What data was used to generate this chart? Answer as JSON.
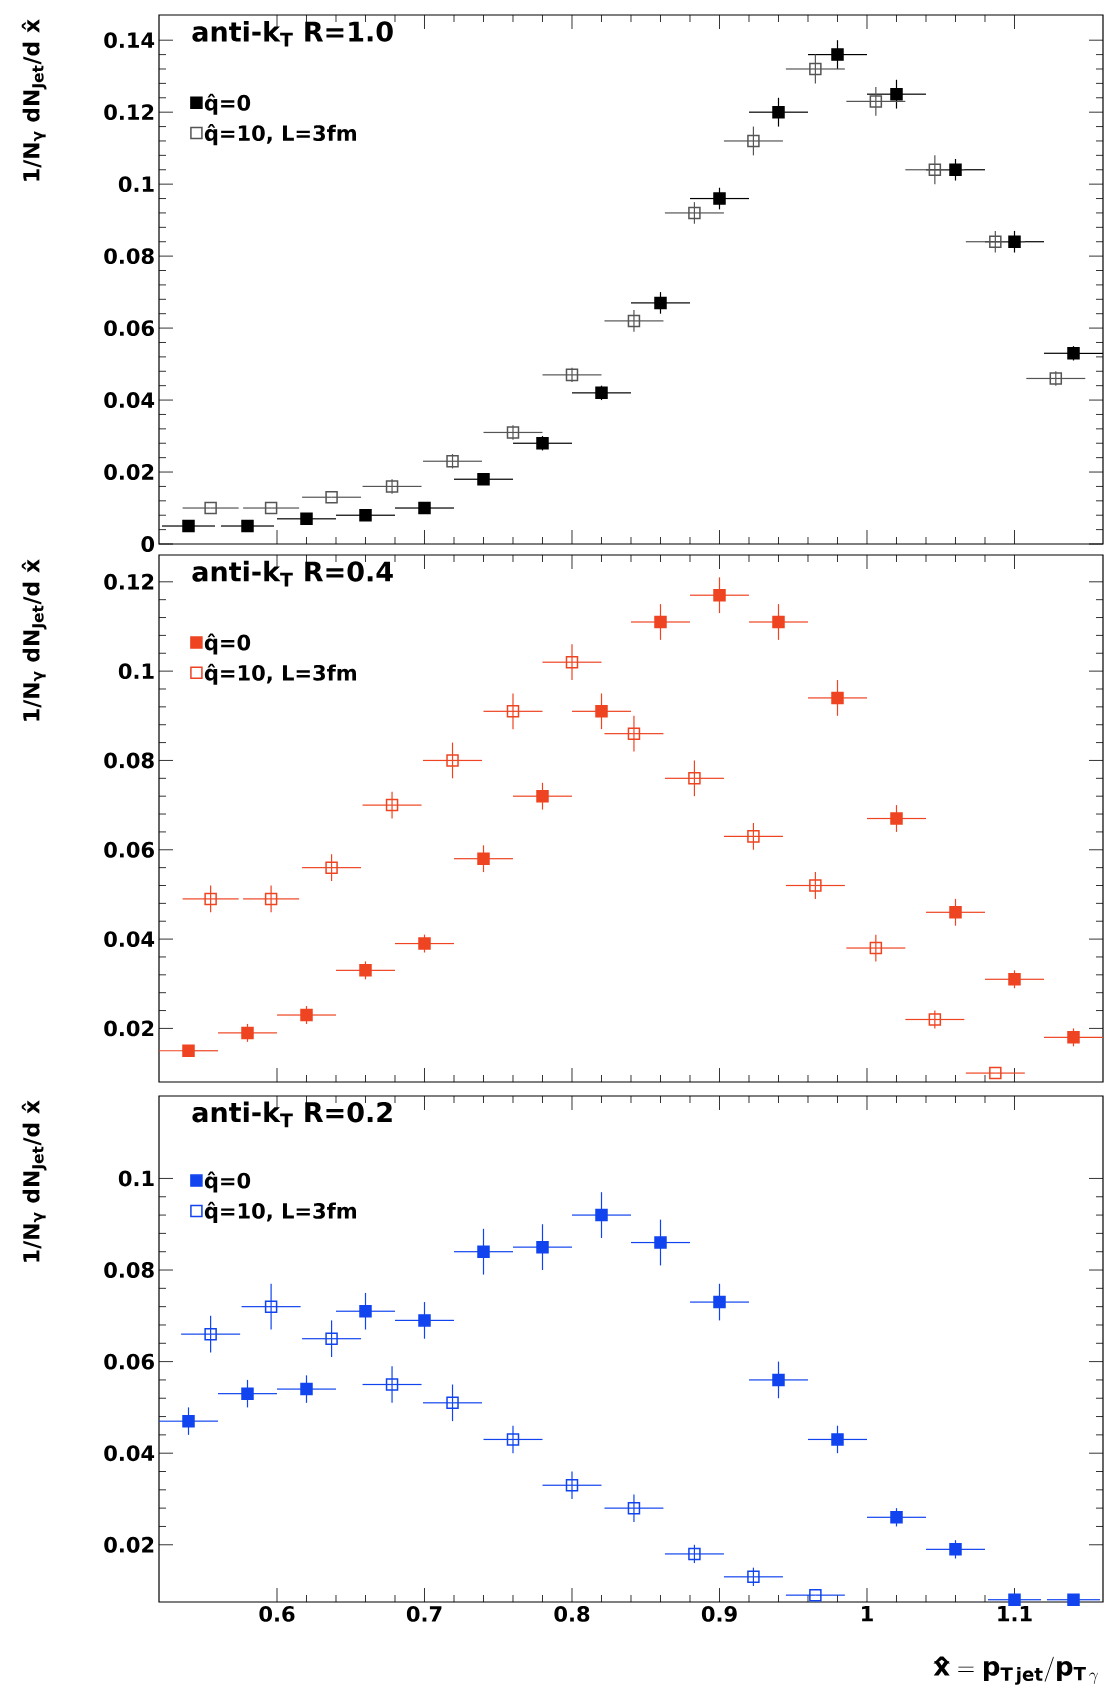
{
  "chart_data": [
    {
      "type": "scatter",
      "title": "anti-k$_{T}$ R=1.0",
      "ylabel": "1/N$_{γ}$ dN$_{Jet}$/d x̂",
      "xlim": [
        0.52,
        1.16
      ],
      "xticks": [
        0.6,
        0.7,
        0.8,
        0.9,
        1,
        1.1
      ],
      "ylim": [
        0,
        0.147
      ],
      "yticks": [
        0,
        0.02,
        0.04,
        0.06,
        0.08,
        0.1,
        0.12,
        0.14
      ],
      "tick_labels": "y",
      "legend": "top left",
      "marker": "square",
      "series": [
        {
          "name": "q̂=0",
          "color": "#000000",
          "x": [
            0.54,
            0.58,
            0.62,
            0.66,
            0.7,
            0.74,
            0.78,
            0.82,
            0.86,
            0.9,
            0.94,
            0.98,
            1.02,
            1.06,
            1.1,
            1.14
          ],
          "values": [
            0.005,
            0.005,
            0.007,
            0.008,
            0.01,
            0.018,
            0.028,
            0.042,
            0.067,
            0.096,
            0.12,
            0.136,
            0.125,
            0.104,
            0.084,
            0.053
          ],
          "errors": [
            null,
            null,
            null,
            null,
            null,
            null,
            0.002,
            0.002,
            0.003,
            0.003,
            0.004,
            0.004,
            0.004,
            0.003,
            0.003,
            0.002
          ],
          "xerrors": [
            0.018,
            0.018,
            0.02,
            0.02,
            0.02,
            0.02,
            0.02,
            0.02,
            0.02,
            0.02,
            0.02,
            0.02,
            0.02,
            0.02,
            0.02,
            0.02
          ]
        },
        {
          "name": "q̂=10, L=3fm",
          "color": "#555555",
          "x": [
            0.555,
            0.596,
            0.637,
            0.678,
            0.719,
            0.76,
            0.8,
            0.842,
            0.883,
            0.923,
            0.965,
            1.006,
            1.046,
            1.087,
            1.128
          ],
          "values": [
            0.01,
            0.01,
            0.013,
            0.016,
            0.023,
            0.031,
            0.047,
            0.062,
            0.092,
            0.112,
            0.132,
            0.123,
            0.104,
            0.084,
            0.046
          ],
          "errors": [
            null,
            null,
            null,
            0.002,
            0.002,
            0.002,
            0.002,
            0.003,
            0.003,
            0.004,
            0.004,
            0.004,
            0.004,
            0.003,
            0.002
          ],
          "xerrors": [
            0.019,
            0.019,
            0.02,
            0.02,
            0.02,
            0.02,
            0.02,
            0.02,
            0.02,
            0.02,
            0.02,
            0.02,
            0.02,
            0.02,
            0.02
          ]
        }
      ]
    },
    {
      "type": "scatter",
      "title": "anti-k$_{T}$ R=0.4",
      "ylabel": "1/N$_{γ}$ dN$_{Jet}$/d x̂",
      "xlim": [
        0.52,
        1.16
      ],
      "xticks": [
        0.6,
        0.7,
        0.8,
        0.9,
        1,
        1.1
      ],
      "ylim": [
        0.008,
        0.126
      ],
      "yticks": [
        0.02,
        0.04,
        0.06,
        0.08,
        0.1,
        0.12
      ],
      "tick_labels": "y",
      "legend": "top left",
      "marker": "square",
      "series": [
        {
          "name": "q̂=0",
          "color": "#ee4422",
          "x": [
            0.54,
            0.58,
            0.62,
            0.66,
            0.7,
            0.74,
            0.78,
            0.82,
            0.86,
            0.9,
            0.94,
            0.98,
            1.02,
            1.06,
            1.1,
            1.14
          ],
          "values": [
            0.015,
            0.019,
            0.023,
            0.033,
            0.039,
            0.058,
            0.072,
            0.091,
            0.111,
            0.117,
            0.111,
            0.094,
            0.067,
            0.046,
            0.031,
            0.018
          ],
          "errors": [
            null,
            0.002,
            0.002,
            0.002,
            0.002,
            0.003,
            0.003,
            0.004,
            0.004,
            0.004,
            0.004,
            0.004,
            0.003,
            0.003,
            0.002,
            0.002
          ],
          "xerrors": [
            0.02,
            0.02,
            0.02,
            0.02,
            0.02,
            0.02,
            0.02,
            0.02,
            0.02,
            0.02,
            0.02,
            0.02,
            0.02,
            0.02,
            0.02,
            0.02
          ]
        },
        {
          "name": "q̂=10, L=3fm",
          "color": "#ee4422",
          "x": [
            0.555,
            0.596,
            0.637,
            0.678,
            0.719,
            0.76,
            0.8,
            0.842,
            0.883,
            0.923,
            0.965,
            1.006,
            1.046,
            1.087
          ],
          "values": [
            0.049,
            0.049,
            0.056,
            0.07,
            0.08,
            0.091,
            0.102,
            0.086,
            0.076,
            0.063,
            0.052,
            0.038,
            0.022,
            0.01
          ],
          "errors": [
            0.003,
            0.003,
            0.003,
            0.003,
            0.004,
            0.004,
            0.004,
            0.004,
            0.004,
            0.003,
            0.003,
            0.003,
            0.002,
            null
          ],
          "xerrors": [
            0.019,
            0.019,
            0.02,
            0.02,
            0.02,
            0.02,
            0.02,
            0.02,
            0.02,
            0.02,
            0.02,
            0.02,
            0.02,
            0.02
          ]
        }
      ]
    },
    {
      "type": "scatter",
      "title": "anti-k$_{T}$ R=0.2",
      "ylabel": "1/N$_{γ}$ dN$_{Jet}$/d x̂",
      "xlabel": "\\mathbf{\\hat{x} = p_{T\\,jet}/p_{T\\,\\gamma}}",
      "xlim": [
        0.52,
        1.16
      ],
      "xticks": [
        0.6,
        0.7,
        0.8,
        0.9,
        1,
        1.1
      ],
      "ylim": [
        0.0075,
        0.118
      ],
      "yticks": [
        0.02,
        0.04,
        0.06,
        0.08,
        0.1
      ],
      "legend": "top left",
      "marker": "square",
      "series": [
        {
          "name": "q̂=0",
          "color": "#1144ee",
          "x": [
            0.54,
            0.58,
            0.62,
            0.66,
            0.7,
            0.74,
            0.78,
            0.82,
            0.86,
            0.9,
            0.94,
            0.98,
            1.02,
            1.06,
            1.1,
            1.14
          ],
          "values": [
            0.047,
            0.053,
            0.054,
            0.071,
            0.069,
            0.084,
            0.085,
            0.092,
            0.086,
            0.073,
            0.056,
            0.043,
            0.026,
            0.019,
            0.008,
            0.008
          ],
          "errors": [
            0.003,
            0.003,
            0.003,
            0.004,
            0.004,
            0.005,
            0.005,
            0.005,
            0.005,
            0.004,
            0.004,
            0.003,
            0.002,
            0.002,
            null,
            null
          ],
          "xerrors": [
            0.02,
            0.02,
            0.02,
            0.02,
            0.02,
            0.02,
            0.02,
            0.02,
            0.02,
            0.02,
            0.02,
            0.02,
            0.02,
            0.02,
            0.018,
            0.018
          ]
        },
        {
          "name": "q̂=10, L=3fm",
          "color": "#1144ee",
          "x": [
            0.555,
            0.596,
            0.637,
            0.678,
            0.719,
            0.76,
            0.8,
            0.842,
            0.883,
            0.923,
            0.965
          ],
          "values": [
            0.066,
            0.072,
            0.065,
            0.055,
            0.051,
            0.043,
            0.033,
            0.028,
            0.018,
            0.013,
            0.009
          ],
          "errors": [
            0.004,
            0.005,
            0.004,
            0.004,
            0.004,
            0.003,
            0.003,
            0.003,
            0.002,
            0.002,
            null
          ],
          "xerrors": [
            0.02,
            0.02,
            0.02,
            0.02,
            0.02,
            0.02,
            0.02,
            0.02,
            0.02,
            0.02,
            0.02
          ]
        }
      ]
    }
  ]
}
